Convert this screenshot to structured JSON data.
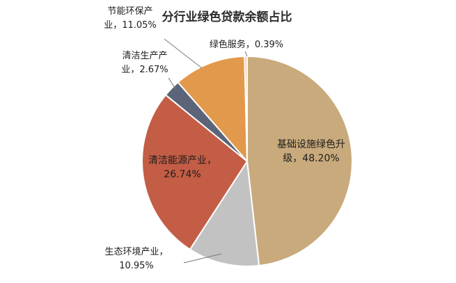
{
  "chart_data": {
    "type": "pie",
    "title": "分行业绿色贷款余额占比",
    "slices": [
      {
        "lines": [
          "基础设施绿色升",
          "级，48.20%"
        ],
        "value": 48.2,
        "color": "#c9aa7c"
      },
      {
        "lines": [
          "生态环境产业，",
          "10.95%"
        ],
        "value": 10.95,
        "color": "#c2c2c2"
      },
      {
        "lines": [
          "清洁能源产业，",
          "26.74%"
        ],
        "value": 26.74,
        "color": "#c45d45"
      },
      {
        "lines": [
          "清洁生产产",
          "业，2.67%"
        ],
        "value": 2.67,
        "color": "#5b6478"
      },
      {
        "lines": [
          "节能环保产",
          "业，11.05%"
        ],
        "value": 11.05,
        "color": "#e2994c"
      },
      {
        "lines": [
          "绿色服务，0.39%"
        ],
        "value": 0.39,
        "color": "#f2c69a"
      }
    ]
  }
}
